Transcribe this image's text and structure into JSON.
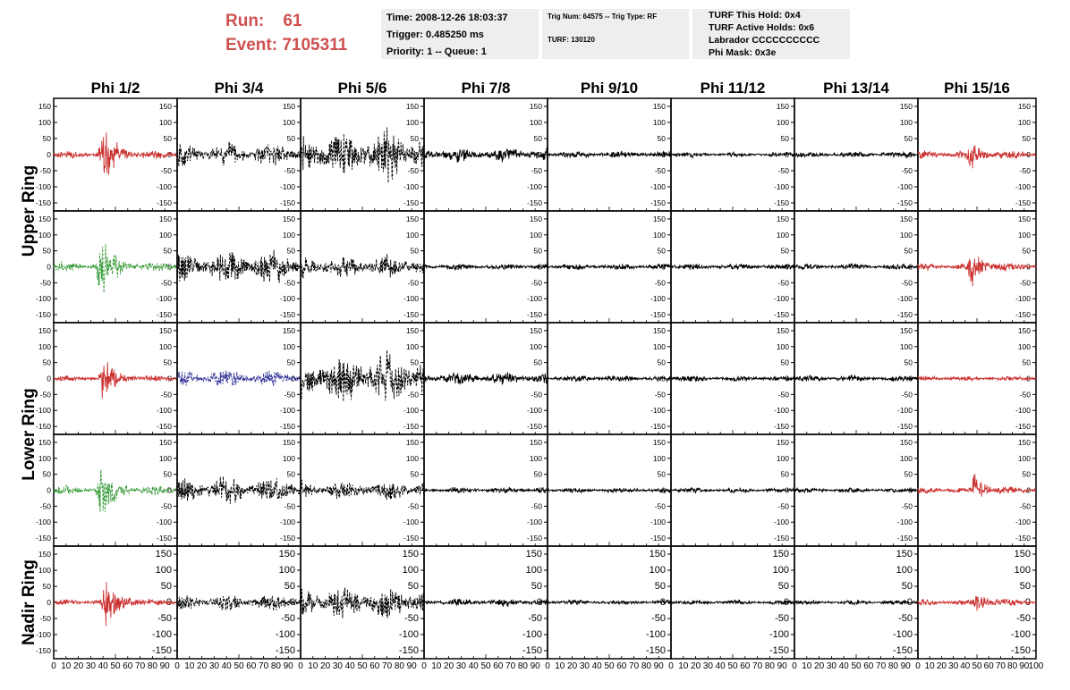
{
  "header": {
    "run_label": "Run:",
    "run_value": "61",
    "event_label": "Event:",
    "event_value": "7105311"
  },
  "info_time": {
    "time": "Time: 2008-12-26 18:03:37",
    "trigger": "Trigger: 0.485250 ms",
    "priority": "Priority: 1 -- Queue: 1"
  },
  "info_trig": {
    "trig": "Trig Num: 64575 -- Trig Type: RF",
    "turf": "TURF: 130120"
  },
  "info_turf": {
    "this_hold": "TURF This Hold: 0x4",
    "active_holds": "TURF Active Holds: 0x6",
    "labrador": "Labrador CCCCCCCCCC",
    "phi_mask": "Phi Mask: 0x3e"
  },
  "colors": {
    "red": "#cc3333",
    "green": "#339933",
    "blue": "#333399",
    "black": "#000000"
  },
  "chart_data": {
    "type": "line",
    "columns": [
      "Phi 1/2",
      "Phi 3/4",
      "Phi 5/6",
      "Phi 7/8",
      "Phi 9/10",
      "Phi 11/12",
      "Phi 13/14",
      "Phi 15/16"
    ],
    "rows": [
      "Upper Ring",
      "",
      "Lower Ring",
      "",
      "Nadir Ring"
    ],
    "ylim": [
      -175,
      175
    ],
    "xlim": [
      0,
      100
    ],
    "y_ticks": [
      -150,
      -100,
      -50,
      0,
      50,
      100,
      150
    ],
    "x_tick_labels": [
      "0",
      "10",
      "20",
      "30",
      "40",
      "50",
      "60",
      "70",
      "80",
      "90",
      "100"
    ],
    "panels": [
      [
        {
          "color": "red",
          "dashed": false,
          "amp": 18,
          "burst_center": 40,
          "burst_amp": 150
        },
        {
          "color": "black",
          "dashed": true,
          "amp": 55,
          "burst_center": 0,
          "burst_amp": 0
        },
        {
          "color": "black",
          "dashed": true,
          "amp": 120,
          "burst_center": 0,
          "burst_amp": 0
        },
        {
          "color": "black",
          "dashed": false,
          "amp": 35,
          "burst_center": 0,
          "burst_amp": 0
        },
        {
          "color": "black",
          "dashed": false,
          "amp": 18,
          "burst_center": 0,
          "burst_amp": 0
        },
        {
          "color": "black",
          "dashed": false,
          "amp": 12,
          "burst_center": 0,
          "burst_amp": 0
        },
        {
          "color": "black",
          "dashed": false,
          "amp": 15,
          "burst_center": 0,
          "burst_amp": 0
        },
        {
          "color": "red",
          "dashed": false,
          "amp": 20,
          "burst_center": 45,
          "burst_amp": 50
        }
      ],
      [
        {
          "color": "green",
          "dashed": true,
          "amp": 25,
          "burst_center": 38,
          "burst_amp": 150
        },
        {
          "color": "black",
          "dashed": true,
          "amp": 80,
          "burst_center": 0,
          "burst_amp": 0
        },
        {
          "color": "black",
          "dashed": true,
          "amp": 55,
          "burst_center": 0,
          "burst_amp": 0
        },
        {
          "color": "black",
          "dashed": false,
          "amp": 15,
          "burst_center": 0,
          "burst_amp": 0
        },
        {
          "color": "black",
          "dashed": false,
          "amp": 15,
          "burst_center": 0,
          "burst_amp": 0
        },
        {
          "color": "black",
          "dashed": false,
          "amp": 15,
          "burst_center": 0,
          "burst_amp": 0
        },
        {
          "color": "black",
          "dashed": false,
          "amp": 15,
          "burst_center": 0,
          "burst_amp": 0
        },
        {
          "color": "red",
          "dashed": false,
          "amp": 18,
          "burst_center": 45,
          "burst_amp": 80
        }
      ],
      [
        {
          "color": "red",
          "dashed": false,
          "amp": 15,
          "burst_center": 40,
          "burst_amp": 90
        },
        {
          "color": "blue",
          "dashed": true,
          "amp": 40,
          "burst_center": 0,
          "burst_amp": 0
        },
        {
          "color": "black",
          "dashed": true,
          "amp": 120,
          "burst_center": 0,
          "burst_amp": 0
        },
        {
          "color": "black",
          "dashed": false,
          "amp": 30,
          "burst_center": 0,
          "burst_amp": 0
        },
        {
          "color": "black",
          "dashed": false,
          "amp": 15,
          "burst_center": 0,
          "burst_amp": 0
        },
        {
          "color": "black",
          "dashed": false,
          "amp": 15,
          "burst_center": 0,
          "burst_amp": 0
        },
        {
          "color": "black",
          "dashed": false,
          "amp": 15,
          "burst_center": 0,
          "burst_amp": 0
        },
        {
          "color": "red",
          "dashed": false,
          "amp": 12,
          "burst_center": 0,
          "burst_amp": 0
        }
      ],
      [
        {
          "color": "green",
          "dashed": true,
          "amp": 22,
          "burst_center": 38,
          "burst_amp": 130
        },
        {
          "color": "black",
          "dashed": true,
          "amp": 70,
          "burst_center": 0,
          "burst_amp": 0
        },
        {
          "color": "black",
          "dashed": true,
          "amp": 45,
          "burst_center": 0,
          "burst_amp": 0
        },
        {
          "color": "black",
          "dashed": false,
          "amp": 15,
          "burst_center": 0,
          "burst_amp": 0
        },
        {
          "color": "black",
          "dashed": false,
          "amp": 12,
          "burst_center": 0,
          "burst_amp": 0
        },
        {
          "color": "black",
          "dashed": false,
          "amp": 12,
          "burst_center": 0,
          "burst_amp": 0
        },
        {
          "color": "black",
          "dashed": false,
          "amp": 12,
          "burst_center": 0,
          "burst_amp": 0
        },
        {
          "color": "red",
          "dashed": false,
          "amp": 15,
          "burst_center": 48,
          "burst_amp": 70
        }
      ],
      [
        {
          "color": "red",
          "dashed": false,
          "amp": 15,
          "burst_center": 42,
          "burst_amp": 130
        },
        {
          "color": "black",
          "dashed": true,
          "amp": 40,
          "burst_center": 0,
          "burst_amp": 0
        },
        {
          "color": "black",
          "dashed": true,
          "amp": 80,
          "burst_center": 0,
          "burst_amp": 0
        },
        {
          "color": "black",
          "dashed": false,
          "amp": 18,
          "burst_center": 0,
          "burst_amp": 0
        },
        {
          "color": "black",
          "dashed": false,
          "amp": 12,
          "burst_center": 0,
          "burst_amp": 0
        },
        {
          "color": "black",
          "dashed": false,
          "amp": 12,
          "burst_center": 0,
          "burst_amp": 0
        },
        {
          "color": "black",
          "dashed": false,
          "amp": 12,
          "burst_center": 0,
          "burst_amp": 0
        },
        {
          "color": "red",
          "dashed": false,
          "amp": 15,
          "burst_center": 50,
          "burst_amp": 40
        }
      ]
    ]
  }
}
